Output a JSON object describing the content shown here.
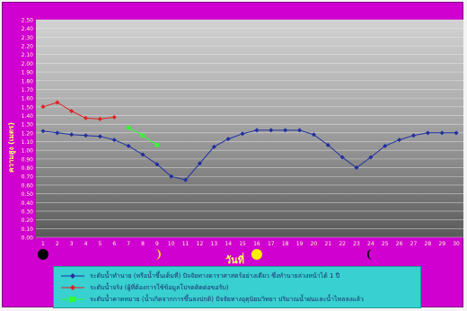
{
  "chart_data": {
    "type": "line",
    "xlabel": "วันที่",
    "ylabel": "ความสูง (เมตร)",
    "ylim": [
      0,
      2.5
    ],
    "yticks": [
      "0.00",
      "0.10",
      "0.20",
      "0.30",
      "0.40",
      "0.50",
      "0.60",
      "0.70",
      "0.80",
      "0.90",
      "1.00",
      "1.10",
      "1.20",
      "1.30",
      "1.40",
      "1.50",
      "1.60",
      "1.70",
      "1.80",
      "1.90",
      "2.00",
      "2.10",
      "2.20",
      "2.30",
      "2.40",
      "2.50"
    ],
    "xticks": [
      "1",
      "2",
      "3",
      "4",
      "5",
      "6",
      "7",
      "8",
      "9",
      "10",
      "11",
      "12",
      "13",
      "14",
      "15",
      "16",
      "17",
      "18",
      "19",
      "20",
      "21",
      "22",
      "23",
      "24",
      "25",
      "26",
      "27",
      "28",
      "29",
      "30"
    ],
    "moon_phases": [
      {
        "day": 1,
        "phase": "new-moon"
      },
      {
        "day": 9,
        "phase": "first-quarter"
      },
      {
        "day": 16,
        "phase": "full-moon"
      },
      {
        "day": 24,
        "phase": "last-quarter"
      }
    ],
    "series": [
      {
        "name": "ระดับน้ำทำนาย (หรือน้ำขึ้นเต็มที่) ปัจจัยทางดาราศาสตร์อย่างเดียว ซึ่งทำนายล่วงหน้าได้ 1 ปี",
        "color": "#2030a0",
        "marker": "diamond",
        "x": [
          1,
          2,
          3,
          4,
          5,
          6,
          7,
          8,
          9,
          10,
          11,
          12,
          13,
          14,
          15,
          16,
          17,
          18,
          19,
          20,
          21,
          22,
          23,
          24,
          25,
          26,
          27,
          28,
          29,
          30
        ],
        "y": [
          1.22,
          1.2,
          1.18,
          1.17,
          1.16,
          1.12,
          1.05,
          0.95,
          0.84,
          0.7,
          0.66,
          0.85,
          1.04,
          1.13,
          1.19,
          1.23,
          1.23,
          1.23,
          1.23,
          1.18,
          1.06,
          0.92,
          0.8,
          0.92,
          1.05,
          1.12,
          1.17,
          1.2,
          1.2,
          1.2
        ]
      },
      {
        "name": "ระดับน้ำจริง (ผู้ที่ต้องการใช้ข้อมูลโปรดติดต่อขอรับ)",
        "color": "#e02020",
        "marker": "diamond",
        "x": [
          1,
          2,
          3,
          4,
          5,
          6
        ],
        "y": [
          1.5,
          1.55,
          1.45,
          1.37,
          1.36,
          1.38
        ]
      },
      {
        "name": "ระดับน้ำคาดหมาย (น้ำเกิดจากการขึ้นลงปกติ) ปัจจัยทางอุตุนิยมวิทยา ปริมาณน้ำฝนและน้ำไหลลงแล้ว",
        "color": "#30ff30",
        "marker": "square",
        "x": [
          7,
          8,
          9
        ],
        "y": [
          1.26,
          1.17,
          1.06
        ]
      }
    ]
  }
}
